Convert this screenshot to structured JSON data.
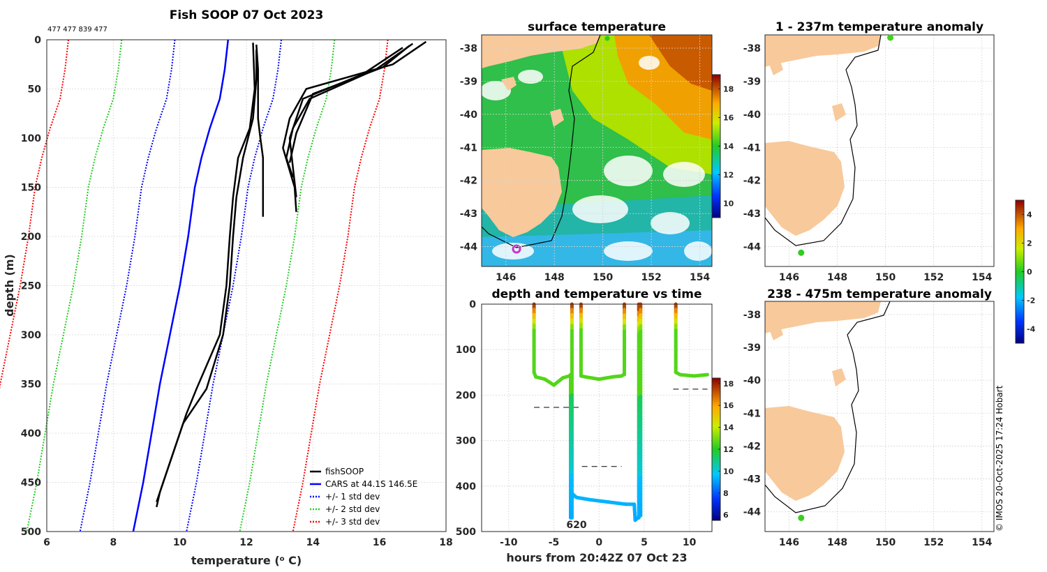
{
  "colors": {
    "fishsoop": "#000000",
    "cars": "#0000ff",
    "std1": "#0000ff",
    "std2": "#22cc22",
    "std3": "#ff0000",
    "land": "#f8c99b",
    "marker_green": "#22cc22",
    "marker_magenta": "#cc33cc"
  },
  "chart_data": [
    {
      "id": "profile",
      "type": "line",
      "title": "Fish SOOP 07 Oct 2023",
      "id_line": "477 477 839 477",
      "xlabel": "temperature (",
      "xlabel_sup": "o",
      "xlabel_tail": " C)",
      "ylabel": "depth (m)",
      "xlim": [
        6,
        18
      ],
      "ylim": [
        0,
        500
      ],
      "xticks": [
        6,
        8,
        10,
        12,
        14,
        16,
        18
      ],
      "yticks": [
        0,
        50,
        100,
        150,
        200,
        250,
        300,
        350,
        400,
        450,
        500
      ],
      "legend": [
        "fishSOOP",
        "CARS at 44.1S 146.5E",
        "+/- 1 std dev",
        "+/- 2 std dev",
        "+/- 3 std dev"
      ],
      "cars_depth": [
        0,
        30,
        60,
        90,
        120,
        150,
        200,
        250,
        300,
        350,
        400,
        450,
        500
      ],
      "cars_temp": [
        11.45,
        11.35,
        11.2,
        10.9,
        10.65,
        10.45,
        10.25,
        10.0,
        9.7,
        9.4,
        9.15,
        8.9,
        8.6
      ],
      "std_offsets": [
        1.6,
        3.2,
        4.8
      ],
      "fishsoop_profiles": [
        {
          "depth": [
            5,
            30,
            80,
            95,
            120,
            180
          ],
          "temp": [
            12.3,
            12.35,
            12.35,
            12.4,
            12.5,
            12.5
          ]
        },
        {
          "depth": [
            3,
            50,
            90,
            120,
            160,
            200,
            250,
            300,
            355,
            380,
            410,
            440,
            460,
            475
          ],
          "temp": [
            12.2,
            12.25,
            12.1,
            11.75,
            11.6,
            11.5,
            11.4,
            11.2,
            10.5,
            10.2,
            9.9,
            9.6,
            9.4,
            9.3
          ]
        },
        {
          "depth": [
            10,
            40,
            80,
            120,
            160,
            200,
            250,
            300,
            355,
            390,
            420,
            450,
            470
          ],
          "temp": [
            12.3,
            12.3,
            12.2,
            11.9,
            11.7,
            11.6,
            11.5,
            11.3,
            10.8,
            10.1,
            9.8,
            9.5,
            9.3
          ]
        },
        {
          "depth": [
            2,
            25,
            50,
            80,
            110,
            150,
            175
          ],
          "temp": [
            17.4,
            16.4,
            13.8,
            13.3,
            13.1,
            13.45,
            13.5
          ]
        },
        {
          "depth": [
            4,
            30,
            60,
            90,
            120,
            140
          ],
          "temp": [
            17.0,
            15.9,
            13.9,
            13.4,
            13.2,
            13.4
          ]
        },
        {
          "depth": [
            8,
            35,
            60,
            100,
            130,
            160
          ],
          "temp": [
            16.7,
            15.5,
            13.7,
            13.3,
            13.4,
            13.5
          ]
        },
        {
          "depth": [
            6,
            28,
            55,
            95,
            125
          ],
          "temp": [
            16.9,
            16.1,
            14.0,
            13.5,
            13.3
          ]
        }
      ]
    },
    {
      "id": "sst",
      "type": "heatmap",
      "title": "surface temperature",
      "xticks": [
        146,
        148,
        150,
        152,
        154
      ],
      "yticks": [
        -38,
        -39,
        -40,
        -41,
        -42,
        -43,
        -44
      ],
      "xlim": [
        145,
        154.5
      ],
      "ylim": [
        -44.6,
        -37.6
      ],
      "colorbar": {
        "ticks": [
          10,
          12,
          14,
          16,
          18
        ],
        "range": [
          9,
          19
        ]
      },
      "markers": [
        {
          "lon": 146.5,
          "lat": -44.1,
          "color": "magenta"
        },
        {
          "lon": 150.2,
          "lat": -37.6,
          "color": "green"
        }
      ]
    },
    {
      "id": "anom_upper",
      "type": "scatter",
      "title": "1 - 237m temperature anomaly",
      "xticks": [
        146,
        148,
        150,
        152,
        154
      ],
      "yticks": [
        -38,
        -39,
        -40,
        -41,
        -42,
        -43,
        -44
      ],
      "points": [
        {
          "lon": 150.2,
          "lat": -37.6,
          "anomaly": 0.3
        },
        {
          "lon": 146.5,
          "lat": -44.1,
          "anomaly": 0.1
        }
      ]
    },
    {
      "id": "anom_lower",
      "type": "scatter",
      "title": "238 - 475m temperature anomaly",
      "xticks": [
        146,
        148,
        150,
        152,
        154
      ],
      "yticks": [
        -38,
        -39,
        -40,
        -41,
        -42,
        -43,
        -44
      ],
      "points": [
        {
          "lon": 146.5,
          "lat": -44.1,
          "anomaly": 0.2
        }
      ]
    },
    {
      "id": "anom_colorbar",
      "type": "colorbar",
      "ticks": [
        -4,
        -2,
        0,
        2,
        4
      ],
      "range": [
        -5,
        5
      ]
    },
    {
      "id": "depth_time",
      "type": "scatter",
      "title": "depth and temperature vs time",
      "xlabel": "hours from 20:42Z 07 Oct 23",
      "xlim": [
        -13,
        12.5
      ],
      "ylim": [
        0,
        500
      ],
      "xticks": [
        -10,
        -5,
        0,
        5,
        10
      ],
      "yticks": [
        0,
        100,
        200,
        300,
        400,
        500
      ],
      "annotation": "620",
      "colorbar": {
        "ticks": [
          6,
          8,
          10,
          12,
          14,
          16,
          18
        ],
        "range": [
          5.5,
          18.5
        ]
      },
      "dashes": [
        {
          "x": [
            -7.2,
            -2.0
          ],
          "depth": 227
        },
        {
          "x": [
            -1.9,
            2.5
          ],
          "depth": 357
        },
        {
          "x": [
            8.2,
            12.0
          ],
          "depth": 187
        }
      ],
      "segments": [
        {
          "time": [
            -7.2,
            -7.2,
            -7.0,
            -6.0,
            -5.0,
            -4.5,
            -4.0,
            -3.3,
            -3.15
          ],
          "depth": [
            0,
            150,
            160,
            165,
            178,
            170,
            162,
            158,
            155
          ]
        },
        {
          "time": [
            -3.15,
            -3.15
          ],
          "depth": [
            155,
            470
          ]
        },
        {
          "time": [
            -3.0,
            -3.0
          ],
          "depth": [
            0,
            470
          ]
        },
        {
          "time": [
            -2.0,
            -2.0,
            -1.5,
            0.0,
            1.5,
            2.5,
            2.7
          ],
          "depth": [
            0,
            158,
            160,
            165,
            160,
            158,
            155
          ]
        },
        {
          "time": [
            2.8,
            2.8
          ],
          "depth": [
            0,
            155
          ]
        },
        {
          "time": [
            -3.0,
            -2.9,
            -2.5,
            -1.0,
            1.0,
            3.0,
            3.9
          ],
          "depth": [
            430,
            418,
            425,
            430,
            435,
            440,
            440
          ]
        },
        {
          "time": [
            3.9,
            4.0,
            4.3
          ],
          "depth": [
            440,
            475,
            470
          ]
        },
        {
          "time": [
            4.4,
            4.4
          ],
          "depth": [
            470,
            0
          ]
        },
        {
          "time": [
            4.6,
            4.6
          ],
          "depth": [
            0,
            465
          ]
        },
        {
          "time": [
            8.5,
            8.5,
            9.0,
            10.5,
            12.0
          ],
          "depth": [
            0,
            150,
            155,
            158,
            155
          ]
        }
      ]
    }
  ],
  "footer": {
    "credit": "© IMOS 20-Oct-2025 17:24 Hobart"
  }
}
